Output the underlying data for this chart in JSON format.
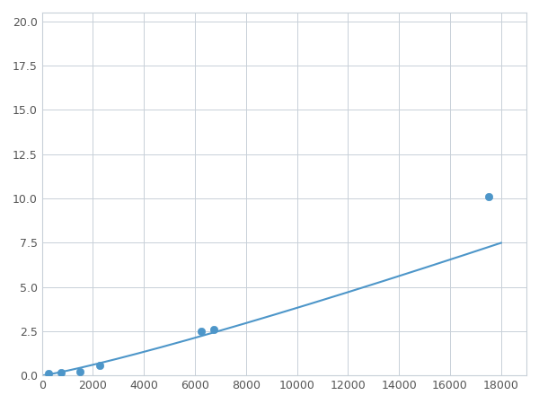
{
  "x_points": [
    250,
    750,
    1500,
    2250,
    6250,
    6750,
    17500
  ],
  "y_points": [
    0.1,
    0.18,
    0.2,
    0.55,
    2.5,
    2.6,
    10.1
  ],
  "line_color": "#4d96c9",
  "marker_color": "#4d96c9",
  "marker_size": 6,
  "xlim": [
    0,
    19000
  ],
  "ylim": [
    0,
    20.5
  ],
  "xticks": [
    0,
    2000,
    4000,
    6000,
    8000,
    10000,
    12000,
    14000,
    16000,
    18000
  ],
  "yticks": [
    0.0,
    2.5,
    5.0,
    7.5,
    10.0,
    12.5,
    15.0,
    17.5,
    20.0
  ],
  "grid_color": "#c8d0d8",
  "background_color": "#ffffff",
  "linewidth": 1.5
}
